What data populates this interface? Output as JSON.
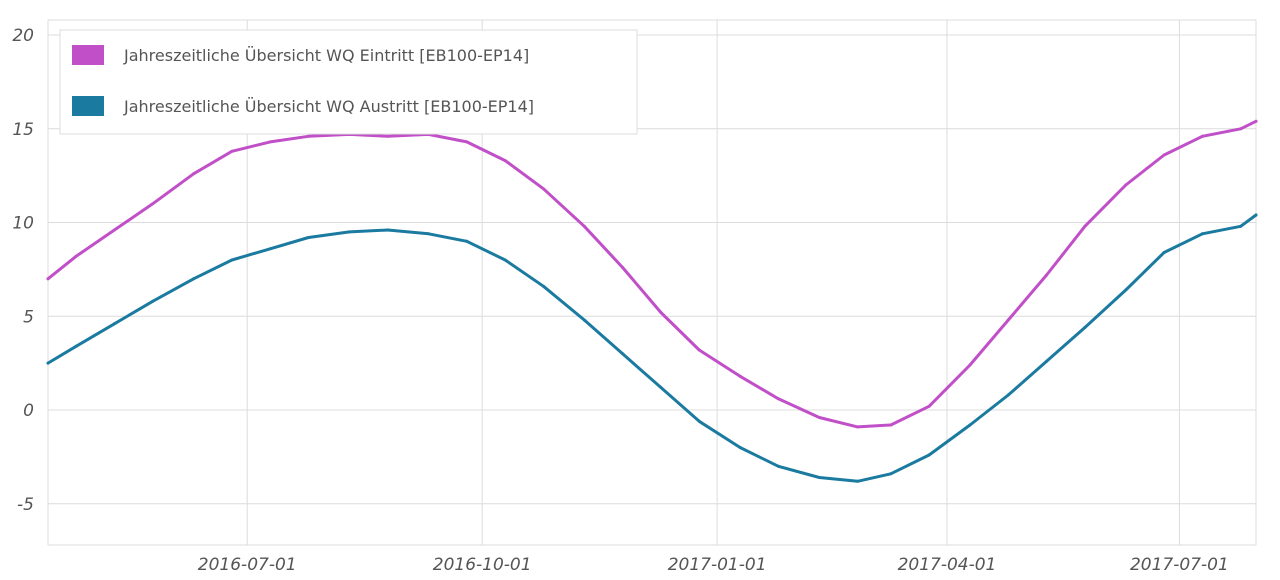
{
  "chart_data": {
    "type": "line",
    "title": "",
    "xlabel": "",
    "ylabel": "",
    "xlim": [
      "2016-04-14",
      "2017-07-31"
    ],
    "ylim": [
      -7.2,
      20.8
    ],
    "y_ticks": [
      -5,
      0,
      5,
      10,
      15,
      20
    ],
    "x_ticks": [
      "2016-07-01",
      "2016-10-01",
      "2017-01-01",
      "2017-04-01",
      "2017-07-01"
    ],
    "y_tick_labels": [
      "-5",
      "0",
      "5",
      "10",
      "15",
      "20"
    ],
    "grid": true,
    "legend_position": "top-left",
    "series": [
      {
        "name": "Jahreszeitliche Übersicht WQ Eintritt [EB100-EP14]",
        "color": "#c04fc8",
        "points": [
          [
            "2016-04-14",
            7.0
          ],
          [
            "2016-04-25",
            8.2
          ],
          [
            "2016-05-10",
            9.6
          ],
          [
            "2016-05-25",
            11.0
          ],
          [
            "2016-06-10",
            12.6
          ],
          [
            "2016-06-25",
            13.8
          ],
          [
            "2016-07-10",
            14.3
          ],
          [
            "2016-07-25",
            14.6
          ],
          [
            "2016-08-10",
            14.7
          ],
          [
            "2016-08-25",
            14.6
          ],
          [
            "2016-09-10",
            14.7
          ],
          [
            "2016-09-25",
            14.3
          ],
          [
            "2016-10-10",
            13.3
          ],
          [
            "2016-10-25",
            11.8
          ],
          [
            "2016-11-10",
            9.8
          ],
          [
            "2016-11-25",
            7.6
          ],
          [
            "2016-12-10",
            5.2
          ],
          [
            "2016-12-25",
            3.2
          ],
          [
            "2017-01-10",
            1.8
          ],
          [
            "2017-01-25",
            0.6
          ],
          [
            "2017-02-10",
            -0.4
          ],
          [
            "2017-02-25",
            -0.9
          ],
          [
            "2017-03-10",
            -0.8
          ],
          [
            "2017-03-25",
            0.2
          ],
          [
            "2017-04-10",
            2.4
          ],
          [
            "2017-04-25",
            4.8
          ],
          [
            "2017-05-10",
            7.2
          ],
          [
            "2017-05-25",
            9.8
          ],
          [
            "2017-06-10",
            12.0
          ],
          [
            "2017-06-25",
            13.6
          ],
          [
            "2017-07-10",
            14.6
          ],
          [
            "2017-07-25",
            15.0
          ],
          [
            "2017-07-31",
            15.4
          ]
        ]
      },
      {
        "name": "Jahreszeitliche Übersicht WQ Austritt [EB100-EP14]",
        "color": "#1a7aa0",
        "points": [
          [
            "2016-04-14",
            2.5
          ],
          [
            "2016-04-25",
            3.4
          ],
          [
            "2016-05-10",
            4.6
          ],
          [
            "2016-05-25",
            5.8
          ],
          [
            "2016-06-10",
            7.0
          ],
          [
            "2016-06-25",
            8.0
          ],
          [
            "2016-07-10",
            8.6
          ],
          [
            "2016-07-25",
            9.2
          ],
          [
            "2016-08-10",
            9.5
          ],
          [
            "2016-08-25",
            9.6
          ],
          [
            "2016-09-10",
            9.4
          ],
          [
            "2016-09-25",
            9.0
          ],
          [
            "2016-10-10",
            8.0
          ],
          [
            "2016-10-25",
            6.6
          ],
          [
            "2016-11-10",
            4.8
          ],
          [
            "2016-11-25",
            3.0
          ],
          [
            "2016-12-10",
            1.2
          ],
          [
            "2016-12-25",
            -0.6
          ],
          [
            "2017-01-10",
            -2.0
          ],
          [
            "2017-01-25",
            -3.0
          ],
          [
            "2017-02-10",
            -3.6
          ],
          [
            "2017-02-25",
            -3.8
          ],
          [
            "2017-03-10",
            -3.4
          ],
          [
            "2017-03-25",
            -2.4
          ],
          [
            "2017-04-10",
            -0.8
          ],
          [
            "2017-04-25",
            0.8
          ],
          [
            "2017-05-10",
            2.6
          ],
          [
            "2017-05-25",
            4.4
          ],
          [
            "2017-06-10",
            6.4
          ],
          [
            "2017-06-25",
            8.4
          ],
          [
            "2017-07-10",
            9.4
          ],
          [
            "2017-07-25",
            9.8
          ],
          [
            "2017-07-31",
            10.4
          ]
        ]
      }
    ]
  }
}
